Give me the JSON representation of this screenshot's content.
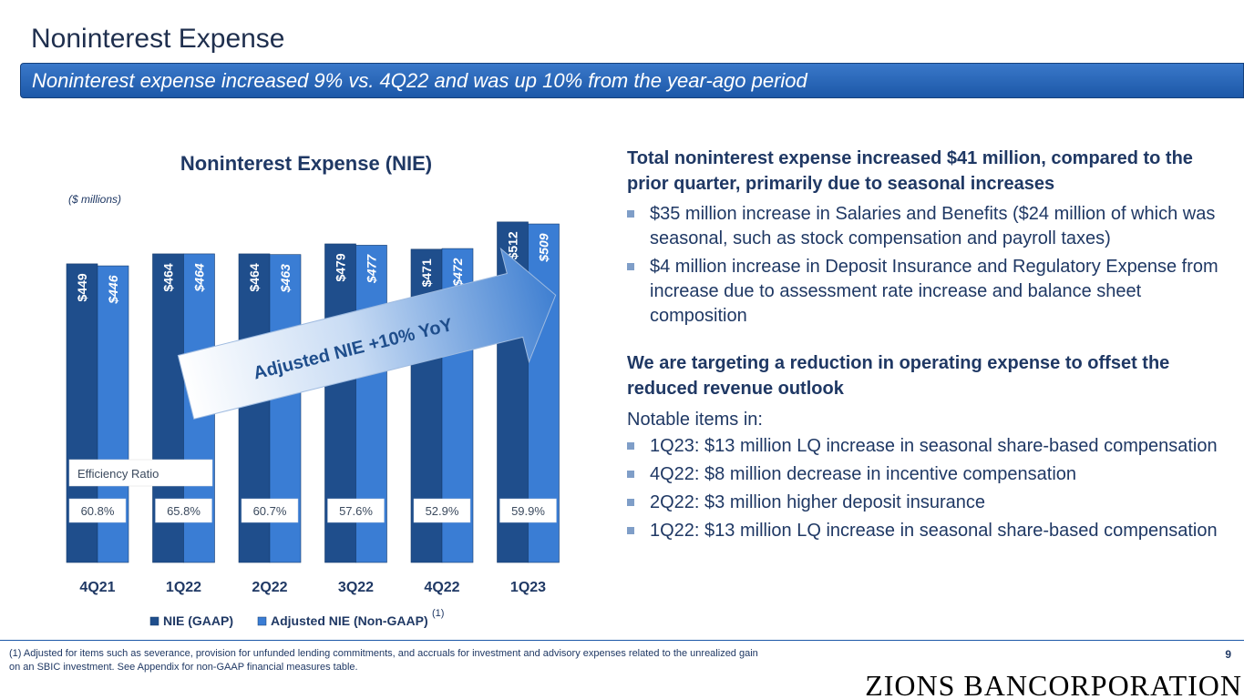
{
  "page": {
    "title": "Noninterest Expense",
    "subtitle": "Noninterest expense increased 9% vs. 4Q22 and was up 10% from the year-ago period",
    "page_number": "9",
    "logo_text": "ZIONS BANCORPORATION"
  },
  "chart_data": {
    "type": "bar",
    "title": "Noninterest Expense (NIE)",
    "unit_label": "($ millions)",
    "categories": [
      "4Q21",
      "1Q22",
      "2Q22",
      "3Q22",
      "4Q22",
      "1Q23"
    ],
    "series": [
      {
        "name": "NIE (GAAP)",
        "values": [
          449,
          464,
          464,
          479,
          471,
          512
        ],
        "labels": [
          "$449",
          "$464",
          "$464",
          "$479",
          "$471",
          "$512"
        ],
        "color": "#1f4e8c"
      },
      {
        "name": "Adjusted NIE (Non-GAAP)",
        "values": [
          446,
          464,
          463,
          477,
          472,
          509
        ],
        "labels": [
          "$446",
          "$464",
          "$463",
          "$477",
          "$472",
          "$509"
        ],
        "color": "#3a7dd4"
      }
    ],
    "legend_superscript": "(1)",
    "ylim": [
      0,
      520
    ],
    "efficiency_ratio_label": "Efficiency Ratio",
    "efficiency_ratio": [
      "60.8%",
      "65.8%",
      "60.7%",
      "57.6%",
      "52.9%",
      "59.9%"
    ],
    "annotation": "Adjusted NIE +10% YoY",
    "legend_position": "bottom"
  },
  "commentary": {
    "heading1": "Total noninterest expense increased $41 million, compared to the prior quarter, primarily due to seasonal increases",
    "bullets1": [
      "$35 million increase in Salaries and Benefits ($24 million of which was seasonal, such as stock compensation and payroll taxes)",
      "$4 million increase in Deposit Insurance and Regulatory Expense from increase due to assessment rate increase and balance sheet composition"
    ],
    "heading2": "We are targeting a reduction in operating expense to offset the reduced revenue outlook",
    "notable_intro": "Notable items in:",
    "bullets2": [
      "1Q23: $13 million LQ increase in seasonal share-based compensation",
      "4Q22: $8 million decrease in incentive compensation",
      "2Q22: $3 million higher deposit insurance",
      "1Q22: $13 million LQ increase in seasonal share-based compensation"
    ]
  },
  "footnote": "(1) Adjusted for items such as severance, provision for unfunded lending commitments, and accruals for investment and advisory expenses related to the unrealized gain on an SBIC investment.  See Appendix for non-GAAP financial measures table.",
  "colors": {
    "accent": "#1c58a8",
    "text": "#1f3864"
  }
}
